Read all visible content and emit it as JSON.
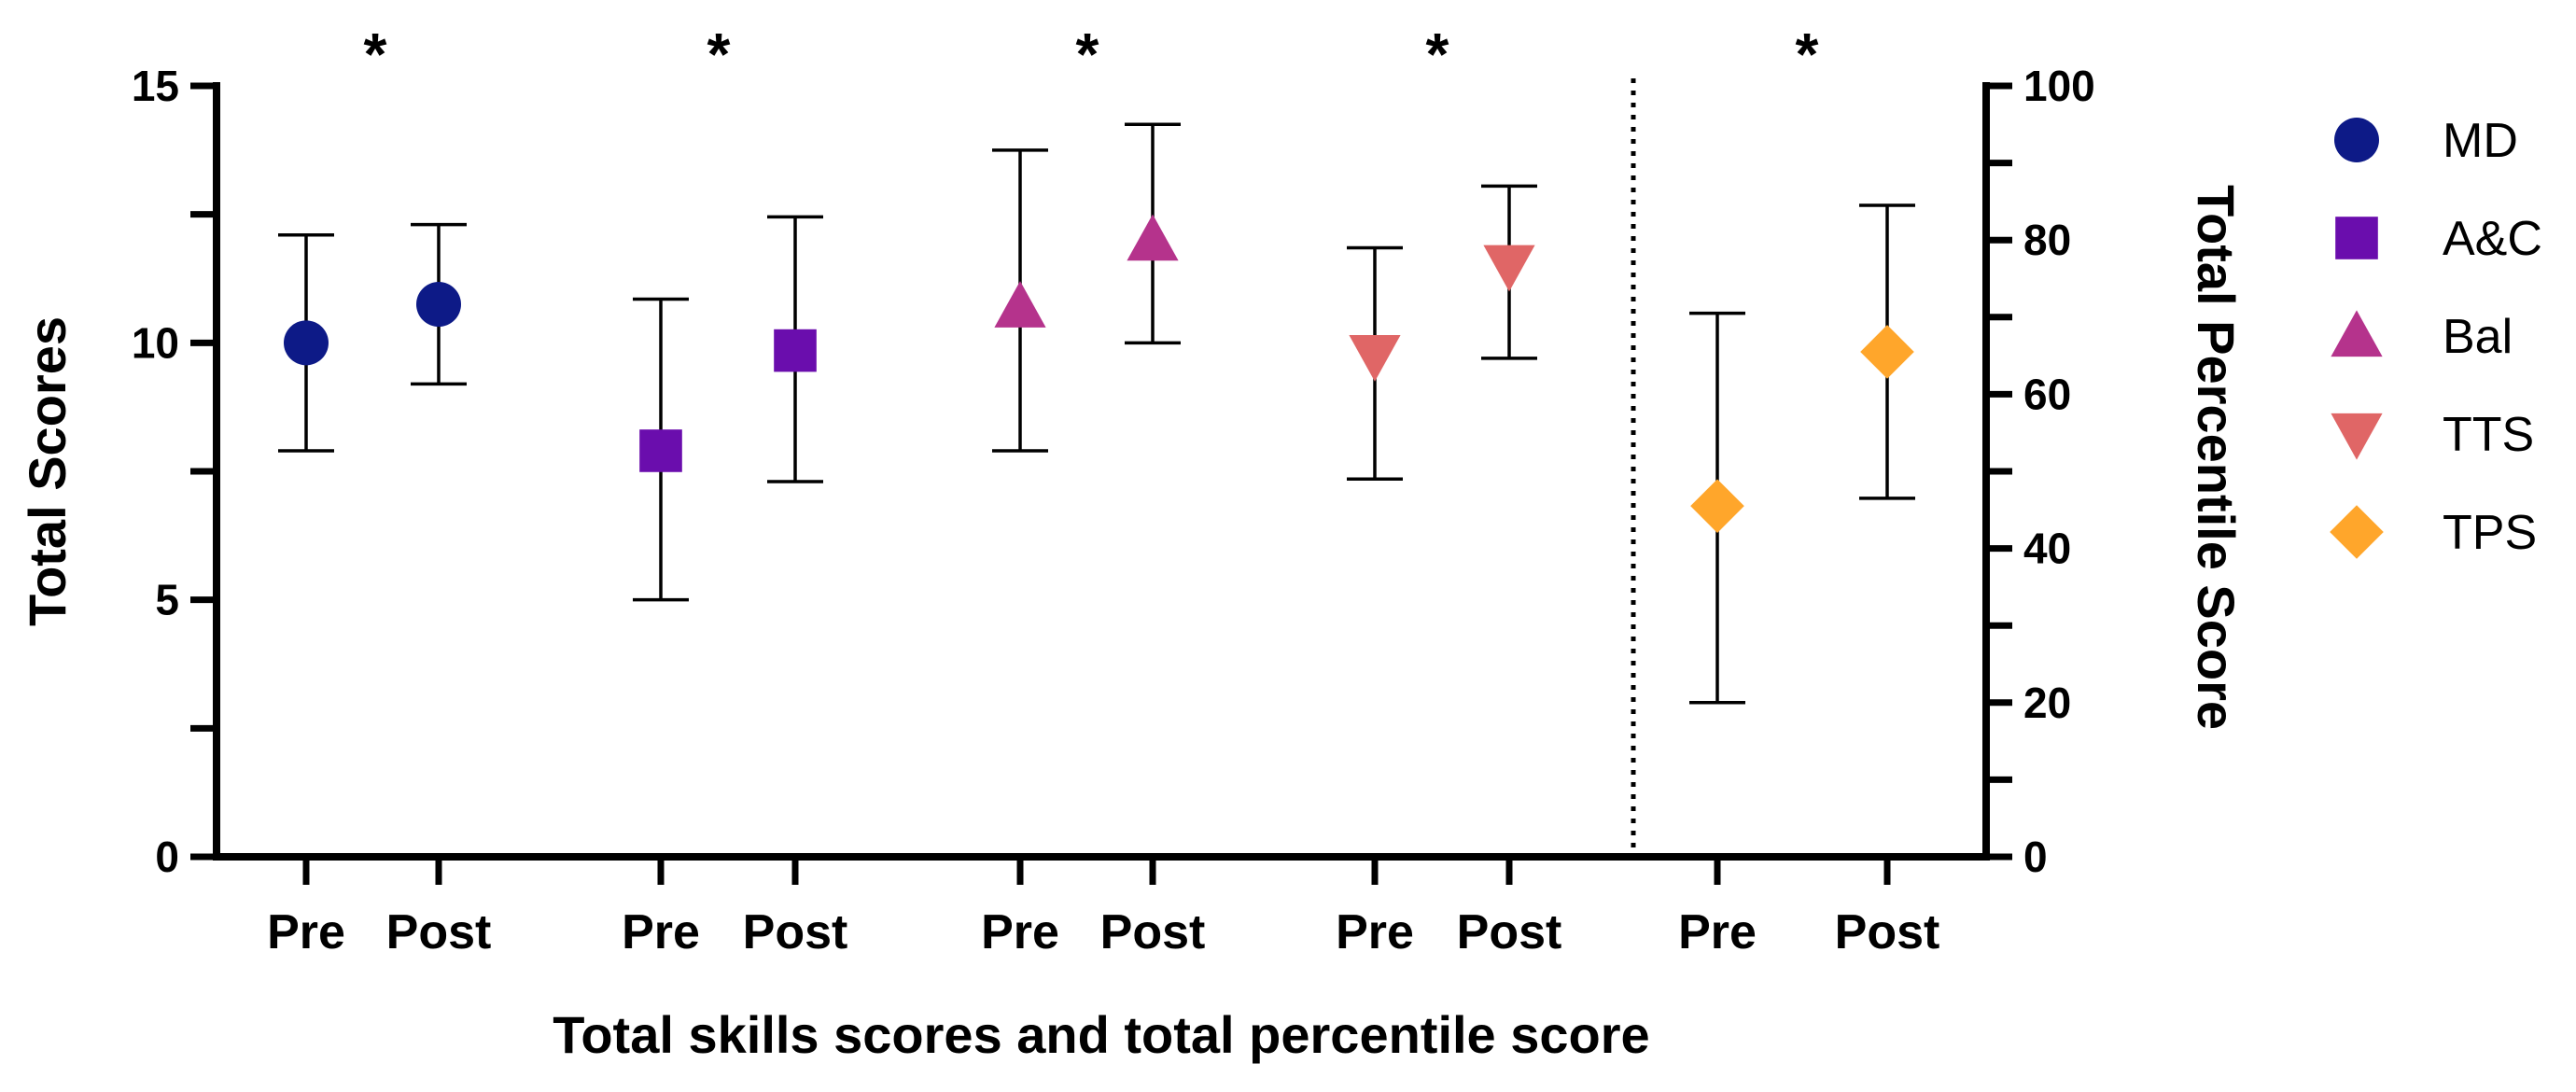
{
  "chart_data": {
    "type": "scatter",
    "title": "",
    "xlabel": "Total skills scores and total percentile score",
    "ylabel": "Total Scores",
    "y2label": "Total Percentile Score",
    "ylim": [
      0,
      15
    ],
    "y2lim": [
      0,
      100
    ],
    "yticks": [
      0,
      5,
      10,
      15
    ],
    "y2ticks": [
      0,
      20,
      40,
      60,
      80,
      100
    ],
    "legend_position": "right",
    "series": [
      {
        "name": "MD",
        "color": "#0d1a87",
        "marker": "circle",
        "axis": "left",
        "points": [
          {
            "label": "Pre",
            "mean": 10.0,
            "low": 7.9,
            "high": 12.1
          },
          {
            "label": "Post",
            "mean": 10.75,
            "low": 9.2,
            "high": 12.3
          }
        ]
      },
      {
        "name": "A&C",
        "color": "#6a0dad",
        "marker": "square",
        "axis": "left",
        "points": [
          {
            "label": "Pre",
            "mean": 7.9,
            "low": 5.0,
            "high": 10.85
          },
          {
            "label": "Post",
            "mean": 9.85,
            "low": 7.3,
            "high": 12.45
          }
        ]
      },
      {
        "name": "Bal",
        "color": "#b5338c",
        "marker": "triangle-up",
        "axis": "left",
        "points": [
          {
            "label": "Pre",
            "mean": 10.7,
            "low": 7.9,
            "high": 13.75
          },
          {
            "label": "Post",
            "mean": 12.0,
            "low": 10.0,
            "high": 14.25
          }
        ]
      },
      {
        "name": "TTS",
        "color": "#e06666",
        "marker": "triangle-down",
        "axis": "left",
        "points": [
          {
            "label": "Pre",
            "mean": 9.75,
            "low": 7.35,
            "high": 11.85
          },
          {
            "label": "Post",
            "mean": 11.5,
            "low": 9.7,
            "high": 13.05
          }
        ]
      },
      {
        "name": "TPS",
        "color": "#ffa62b",
        "marker": "diamond",
        "axis": "right",
        "points": [
          {
            "label": "Pre",
            "mean": 45.5,
            "low": 20.0,
            "high": 70.5
          },
          {
            "label": "Post",
            "mean": 65.5,
            "low": 46.5,
            "high": 84.5
          }
        ]
      }
    ],
    "annotations": [
      "*",
      "*",
      "*",
      "*",
      "*"
    ]
  }
}
